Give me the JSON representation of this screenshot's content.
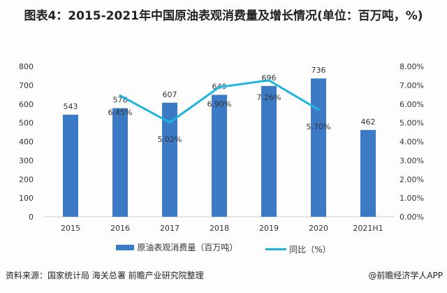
{
  "chart_data": {
    "type": "bar+line",
    "title": "图表4：2015-2021年中国原油表观消费量及增长情况(单位：百万吨，%)",
    "categories": [
      "2015",
      "2016",
      "2017",
      "2018",
      "2019",
      "2020",
      "2021H1"
    ],
    "series": [
      {
        "name": "原油表观消费量（百万吨）",
        "type": "bar",
        "axis": "left",
        "values": [
          543,
          578,
          607,
          649,
          696,
          736,
          462
        ],
        "color": "#3d7ac6"
      },
      {
        "name": "同比（%）",
        "type": "line",
        "axis": "right",
        "values": [
          null,
          6.45,
          5.02,
          6.9,
          7.26,
          5.7,
          null
        ],
        "labels": [
          "",
          "6.45%",
          "5.02%",
          "6.90%",
          "7.26%",
          "5.70%",
          ""
        ],
        "color": "#1db5e0"
      }
    ],
    "ylim_left": [
      0,
      800
    ],
    "yticks_left": [
      "0",
      "100",
      "200",
      "300",
      "400",
      "500",
      "600",
      "700",
      "800"
    ],
    "ylim_right": [
      0,
      8
    ],
    "yticks_right": [
      "0.00%",
      "1.00%",
      "2.00%",
      "3.00%",
      "4.00%",
      "5.00%",
      "6.00%",
      "7.00%",
      "8.00%"
    ],
    "grid": false,
    "legend_position": "bottom"
  },
  "legend": {
    "bar": "原油表观消费量（百万吨）",
    "line": "同比（%）"
  },
  "source": "资料来源：国家统计局 海关总署 前瞻产业研究院整理",
  "credit": "@前瞻经济学人APP"
}
